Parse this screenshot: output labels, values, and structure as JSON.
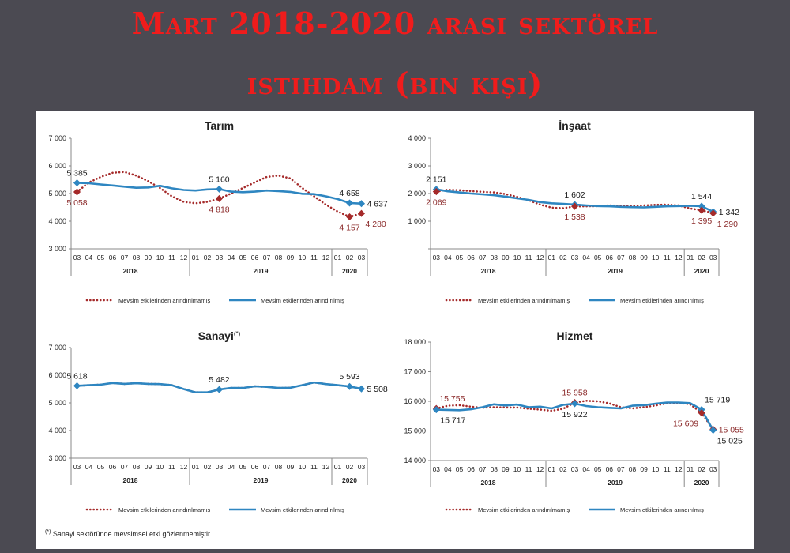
{
  "page": {
    "title_line1": "Mart 2018-2020 arası sektörel",
    "title_line2": "istihdam (bin kişi)",
    "footnote_mark": "(*)",
    "footnote": "Sanayi sektöründe mevsimsel etki gözlenmemiştir."
  },
  "colors": {
    "unadjusted": "#a52a2a",
    "adjusted": "#2e86c1",
    "axis": "#888888",
    "text": "#222222"
  },
  "chart_data": [
    {
      "id": "tarim",
      "type": "line",
      "title": "Tarım",
      "title_sup": "",
      "x": [
        "03",
        "04",
        "05",
        "06",
        "07",
        "08",
        "09",
        "10",
        "11",
        "12",
        "01",
        "02",
        "03",
        "04",
        "05",
        "06",
        "07",
        "08",
        "09",
        "10",
        "11",
        "12",
        "01",
        "02",
        "03"
      ],
      "year_groups": [
        {
          "label": "2018",
          "start": 0,
          "end": 9
        },
        {
          "label": "2019",
          "start": 10,
          "end": 21
        },
        {
          "label": "2020",
          "start": 22,
          "end": 24
        }
      ],
      "ylim": [
        3000,
        7000
      ],
      "yticks": [
        "3 000",
        "4 000",
        "5 000",
        "6 000",
        "7 000"
      ],
      "ytick_values": [
        3000,
        4000,
        5000,
        6000,
        7000
      ],
      "legend": [
        "Mevsim etkilerinden arındırılmamış",
        "Mevsim etkilerinden arındırılmış"
      ],
      "series": [
        {
          "name": "Mevsim etkilerinden arındırılmamış",
          "style": "dotted",
          "values": [
            5058,
            5400,
            5600,
            5750,
            5780,
            5650,
            5450,
            5200,
            4900,
            4700,
            4650,
            4700,
            4818,
            5000,
            5200,
            5400,
            5600,
            5650,
            5550,
            5200,
            4900,
            4600,
            4350,
            4157,
            4280
          ]
        },
        {
          "name": "Mevsim etkilerinden arındırılmış",
          "style": "solid",
          "values": [
            5385,
            5370,
            5330,
            5290,
            5250,
            5210,
            5220,
            5280,
            5190,
            5130,
            5110,
            5150,
            5160,
            5070,
            5050,
            5070,
            5110,
            5090,
            5060,
            4990,
            4980,
            4900,
            4800,
            4658,
            4637
          ]
        }
      ],
      "labels": [
        {
          "text": "5 385",
          "series": 1,
          "idx": 0,
          "pos": "above"
        },
        {
          "text": "5 058",
          "series": 0,
          "idx": 0,
          "pos": "below"
        },
        {
          "text": "5 160",
          "series": 1,
          "idx": 12,
          "pos": "above"
        },
        {
          "text": "4 818",
          "series": 0,
          "idx": 12,
          "pos": "below"
        },
        {
          "text": "4 658",
          "series": 1,
          "idx": 23,
          "pos": "above"
        },
        {
          "text": "4 157",
          "series": 0,
          "idx": 23,
          "pos": "below"
        },
        {
          "text": "4 637",
          "series": 1,
          "idx": 24,
          "pos": "right"
        },
        {
          "text": "4 280",
          "series": 0,
          "idx": 24,
          "pos": "belowright"
        }
      ]
    },
    {
      "id": "insaat",
      "type": "line",
      "title": "İnşaat",
      "title_sup": "",
      "x": [
        "03",
        "04",
        "05",
        "06",
        "07",
        "08",
        "09",
        "10",
        "11",
        "12",
        "01",
        "02",
        "03",
        "04",
        "05",
        "06",
        "07",
        "08",
        "09",
        "10",
        "11",
        "12",
        "01",
        "02",
        "03"
      ],
      "year_groups": [
        {
          "label": "2018",
          "start": 0,
          "end": 9
        },
        {
          "label": "2019",
          "start": 10,
          "end": 21
        },
        {
          "label": "2020",
          "start": 22,
          "end": 24
        }
      ],
      "ylim": [
        0,
        4000
      ],
      "yticks": [
        "",
        "1 000",
        "2 000",
        "3 000",
        "4 000"
      ],
      "ytick_values": [
        0,
        1000,
        2000,
        3000,
        4000
      ],
      "legend": [
        "Mevsim etkilerinden arındırılmamış",
        "Mevsim etkilerinden arındırılmış"
      ],
      "series": [
        {
          "name": "Mevsim etkilerinden arındırılmamış",
          "style": "dotted",
          "values": [
            2069,
            2140,
            2120,
            2090,
            2060,
            2040,
            1980,
            1880,
            1760,
            1600,
            1490,
            1470,
            1538,
            1540,
            1550,
            1570,
            1560,
            1560,
            1570,
            1590,
            1600,
            1570,
            1460,
            1395,
            1290
          ]
        },
        {
          "name": "Mevsim etkilerinden arındırılmış",
          "style": "solid",
          "values": [
            2151,
            2080,
            2040,
            2000,
            1970,
            1940,
            1890,
            1830,
            1770,
            1690,
            1650,
            1630,
            1602,
            1570,
            1550,
            1540,
            1520,
            1510,
            1500,
            1520,
            1540,
            1550,
            1560,
            1544,
            1342
          ]
        }
      ],
      "labels": [
        {
          "text": "2 151",
          "series": 1,
          "idx": 0,
          "pos": "above"
        },
        {
          "text": "2 069",
          "series": 0,
          "idx": 0,
          "pos": "below"
        },
        {
          "text": "1 602",
          "series": 1,
          "idx": 12,
          "pos": "above"
        },
        {
          "text": "1 538",
          "series": 0,
          "idx": 12,
          "pos": "below"
        },
        {
          "text": "1 544",
          "series": 1,
          "idx": 23,
          "pos": "above"
        },
        {
          "text": "1 395",
          "series": 0,
          "idx": 23,
          "pos": "below"
        },
        {
          "text": "1 342",
          "series": 1,
          "idx": 24,
          "pos": "right"
        },
        {
          "text": "1 290",
          "series": 0,
          "idx": 24,
          "pos": "belowright"
        }
      ]
    },
    {
      "id": "sanayi",
      "type": "line",
      "title": "Sanayi",
      "title_sup": "(*)",
      "x": [
        "03",
        "04",
        "05",
        "06",
        "07",
        "08",
        "09",
        "10",
        "11",
        "12",
        "01",
        "02",
        "03",
        "04",
        "05",
        "06",
        "07",
        "08",
        "09",
        "10",
        "11",
        "12",
        "01",
        "02",
        "03"
      ],
      "year_groups": [
        {
          "label": "2018",
          "start": 0,
          "end": 9
        },
        {
          "label": "2019",
          "start": 10,
          "end": 21
        },
        {
          "label": "2020",
          "start": 22,
          "end": 24
        }
      ],
      "ylim": [
        3000,
        7000
      ],
      "yticks": [
        "3 000",
        "4 000",
        "5 000",
        "6 000",
        "7 000"
      ],
      "ytick_values": [
        3000,
        4000,
        5000,
        6000,
        7000
      ],
      "legend": [
        "Mevsim etkilerinden arındırılmamış",
        "Mevsim etkilerinden arındırılmış"
      ],
      "series": [
        {
          "name": "Mevsim etkilerinden arındırılmamış",
          "style": "dotted",
          "values": [
            5618,
            5640,
            5660,
            5720,
            5690,
            5710,
            5690,
            5680,
            5640,
            5500,
            5380,
            5380,
            5482,
            5540,
            5540,
            5600,
            5580,
            5540,
            5550,
            5640,
            5740,
            5680,
            5640,
            5593,
            5508
          ]
        },
        {
          "name": "Mevsim etkilerinden arındırılmış",
          "style": "solid",
          "values": [
            5618,
            5640,
            5660,
            5720,
            5690,
            5710,
            5690,
            5680,
            5640,
            5500,
            5380,
            5380,
            5482,
            5540,
            5540,
            5600,
            5580,
            5540,
            5550,
            5640,
            5740,
            5680,
            5640,
            5593,
            5508
          ]
        }
      ],
      "labels": [
        {
          "text": "5 618",
          "series": 1,
          "idx": 0,
          "pos": "above"
        },
        {
          "text": "5 482",
          "series": 1,
          "idx": 12,
          "pos": "above"
        },
        {
          "text": "5 593",
          "series": 1,
          "idx": 23,
          "pos": "above"
        },
        {
          "text": "5 508",
          "series": 1,
          "idx": 24,
          "pos": "right"
        }
      ]
    },
    {
      "id": "hizmet",
      "type": "line",
      "title": "Hizmet",
      "title_sup": "",
      "x": [
        "03",
        "04",
        "05",
        "06",
        "07",
        "08",
        "09",
        "10",
        "11",
        "12",
        "01",
        "02",
        "03",
        "04",
        "05",
        "06",
        "07",
        "08",
        "09",
        "10",
        "11",
        "12",
        "01",
        "02",
        "03"
      ],
      "year_groups": [
        {
          "label": "2018",
          "start": 0,
          "end": 9
        },
        {
          "label": "2019",
          "start": 10,
          "end": 21
        },
        {
          "label": "2020",
          "start": 22,
          "end": 24
        }
      ],
      "ylim": [
        14000,
        18000
      ],
      "yticks": [
        "14 000",
        "15 000",
        "16 000",
        "17 000",
        "18 000"
      ],
      "ytick_values": [
        14000,
        15000,
        16000,
        17000,
        18000
      ],
      "legend": [
        "Mevsim etkilerinden arındırılmamış",
        "Mevsim etkilerinden arındırılmış"
      ],
      "series": [
        {
          "name": "Mevsim etkilerinden arındırılmamış",
          "style": "dotted",
          "values": [
            15755,
            15850,
            15870,
            15820,
            15780,
            15800,
            15790,
            15790,
            15750,
            15720,
            15680,
            15750,
            15958,
            16020,
            16000,
            15930,
            15800,
            15760,
            15800,
            15860,
            15930,
            15950,
            15900,
            15609,
            15055
          ]
        },
        {
          "name": "Mevsim etkilerinden arındırılmış",
          "style": "solid",
          "values": [
            15717,
            15710,
            15700,
            15730,
            15800,
            15900,
            15860,
            15890,
            15800,
            15820,
            15760,
            15880,
            15922,
            15840,
            15800,
            15780,
            15760,
            15850,
            15870,
            15920,
            15960,
            15960,
            15940,
            15719,
            15025
          ]
        }
      ],
      "labels": [
        {
          "text": "15 755",
          "series": 0,
          "idx": 0,
          "pos": "aboveright"
        },
        {
          "text": "15 717",
          "series": 1,
          "idx": 0,
          "pos": "belowright"
        },
        {
          "text": "15 958",
          "series": 0,
          "idx": 12,
          "pos": "above"
        },
        {
          "text": "15 922",
          "series": 1,
          "idx": 12,
          "pos": "below"
        },
        {
          "text": "15 719",
          "series": 1,
          "idx": 23,
          "pos": "aboveright"
        },
        {
          "text": "15 609",
          "series": 0,
          "idx": 23,
          "pos": "belowleft"
        },
        {
          "text": "15 055",
          "series": 0,
          "idx": 24,
          "pos": "right"
        },
        {
          "text": "15 025",
          "series": 1,
          "idx": 24,
          "pos": "belowright"
        }
      ]
    }
  ]
}
